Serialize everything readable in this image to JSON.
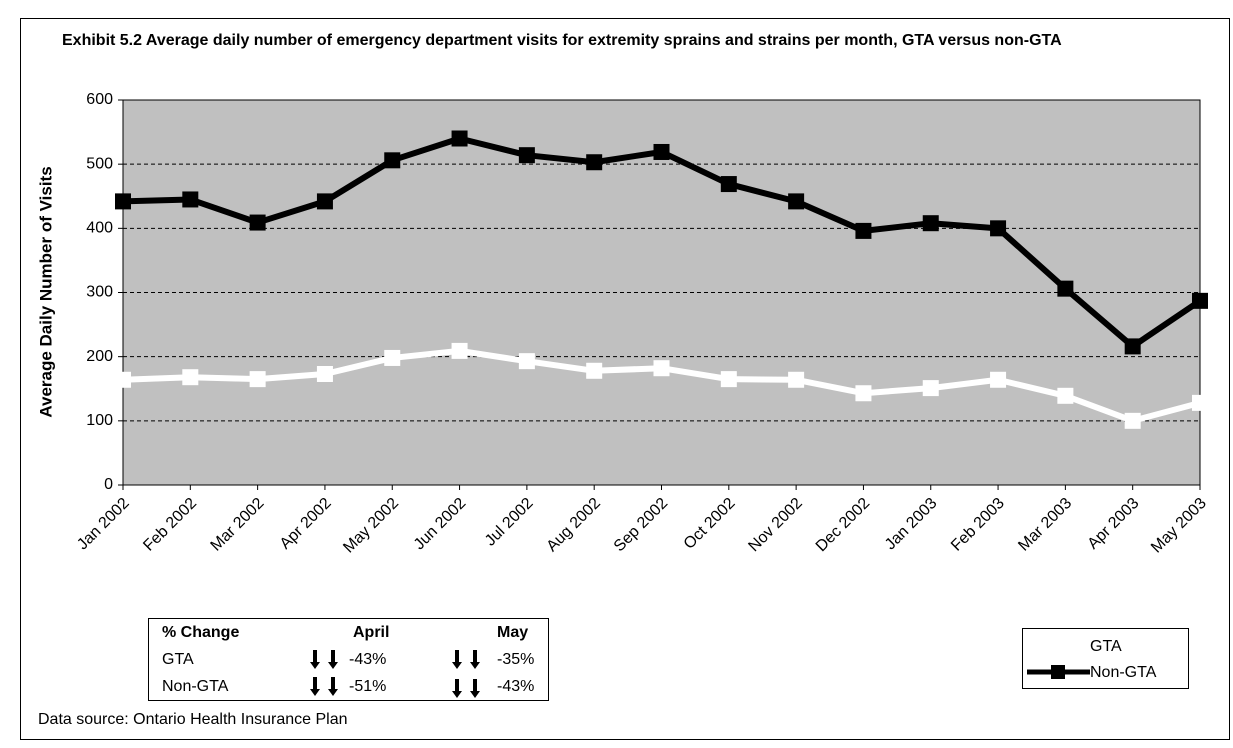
{
  "chart_data": {
    "type": "line",
    "title": "Exhibit 5.2 Average daily number of emergency department visits for extremity sprains and strains per month, GTA versus non-GTA",
    "y_label": "Average Daily Number of Visits",
    "categories": [
      "Jan 2002",
      "Feb 2002",
      "Mar 2002",
      "Apr 2002",
      "May 2002",
      "Jun 2002",
      "Jul 2002",
      "Aug 2002",
      "Sep 2002",
      "Oct 2002",
      "Nov 2002",
      "Dec 2002",
      "Jan 2003",
      "Feb 2003",
      "Mar 2003",
      "Apr 2003",
      "May 2003"
    ],
    "series": [
      {
        "name": "GTA",
        "color": "#ffffff",
        "values": [
          164,
          168,
          165,
          173,
          198,
          209,
          193,
          178,
          182,
          165,
          164,
          143,
          151,
          164,
          139,
          100,
          128
        ]
      },
      {
        "name": "Non-GTA",
        "color": "#000000",
        "values": [
          442,
          445,
          409,
          442,
          506,
          540,
          514,
          503,
          519,
          469,
          442,
          396,
          408,
          400,
          306,
          216,
          287
        ]
      }
    ],
    "ylim": [
      0,
      600
    ],
    "yticks": [
      0,
      100,
      200,
      300,
      400,
      500,
      600
    ],
    "grid": true,
    "plot_background": "#c0c0c0",
    "table": {
      "header": [
        "% Change",
        "April",
        "May"
      ],
      "rows": [
        [
          "GTA",
          "-43%",
          "-35%"
        ],
        [
          "Non-GTA",
          "-51%",
          "-43%"
        ]
      ]
    },
    "source": "Data source: Ontario Health Insurance Plan"
  }
}
